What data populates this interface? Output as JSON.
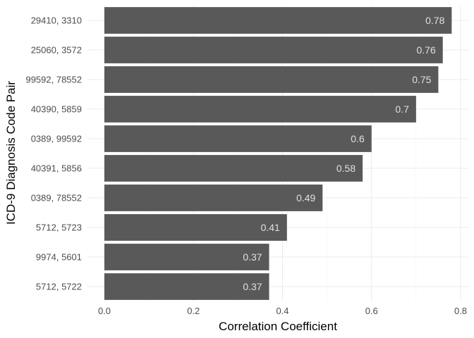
{
  "chart_data": {
    "type": "bar",
    "orientation": "horizontal",
    "categories": [
      "29410, 3310",
      "25060, 3572",
      "99592, 78552",
      "40390, 5859",
      "0389, 99592",
      "40391, 5856",
      "0389, 78552",
      "5712, 5723",
      "9974, 5601",
      "5712, 5722"
    ],
    "values": [
      0.78,
      0.76,
      0.75,
      0.7,
      0.6,
      0.58,
      0.49,
      0.41,
      0.37,
      0.37
    ],
    "data_labels": [
      "0.78",
      "0.76",
      "0.75",
      "0.7",
      "0.6",
      "0.58",
      "0.49",
      "0.41",
      "0.37",
      "0.37"
    ],
    "xlabel": "Correlation Coefficient",
    "ylabel": "ICD-9 Diagnosis Code Pair",
    "xlim": [
      0,
      0.8
    ],
    "xticks": [
      0,
      0.2,
      0.4,
      0.6,
      0.8
    ],
    "xtick_labels": [
      "0.0",
      "0.2",
      "0.4",
      "0.6",
      "0.8"
    ],
    "grid": true,
    "legend": "none",
    "colors": {
      "bar": "#595959",
      "data_label": "#e0e0e0",
      "grid_major": "#ebebeb",
      "grid_minor": "#f4f4f4",
      "background": "#ffffff"
    }
  }
}
